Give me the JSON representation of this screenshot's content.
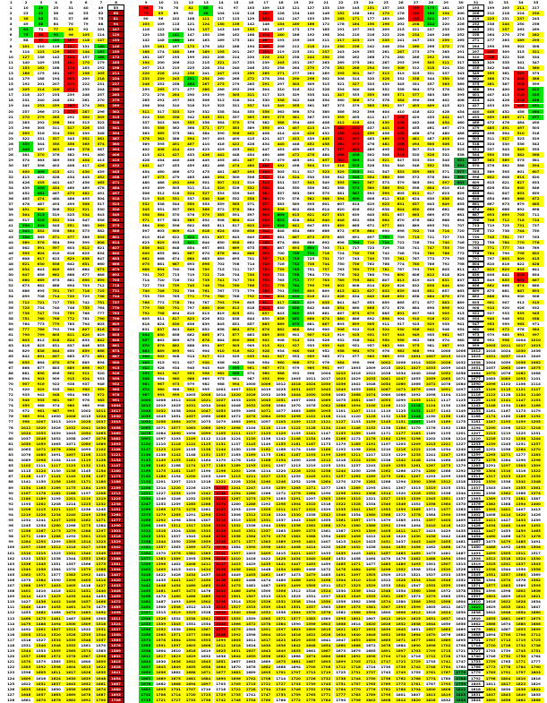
{
  "sheet": {
    "columns": [
      {
        "label": "1",
        "shift": 0,
        "mult": 1.0,
        "bold": false
      },
      {
        "label": "2",
        "shift": -3,
        "mult": 1.0,
        "bold": false
      },
      {
        "label": "3",
        "shift": 6,
        "mult": 1.0,
        "bold": false
      },
      {
        "label": "4",
        "shift": 12,
        "mult": 1.0,
        "bold": false
      },
      {
        "label": "5",
        "shift": 18,
        "mult": 1.0,
        "bold": false
      },
      {
        "label": "6",
        "shift": 27,
        "mult": 1.0,
        "bold": false
      },
      {
        "label": "7",
        "shift": 36,
        "mult": 1.0,
        "bold": false
      },
      {
        "label": "8",
        "shift": 42,
        "mult": 1.0,
        "bold": true
      },
      {
        "label": "",
        "shift": 0,
        "mult": 0,
        "bold": false,
        "spacer": true
      },
      {
        "label": "9",
        "shift": 51,
        "mult": 1.0,
        "bold": false
      },
      {
        "label": "10",
        "shift": 57,
        "mult": 1.0,
        "bold": false
      },
      {
        "label": "11",
        "shift": 63,
        "mult": 1.0,
        "bold": false
      },
      {
        "label": "12",
        "shift": 69,
        "mult": 1.0,
        "bold": false
      },
      {
        "label": "13",
        "shift": 72,
        "mult": 1.0,
        "bold": false
      },
      {
        "label": "14",
        "shift": 78,
        "mult": 1.0,
        "bold": false
      },
      {
        "label": "15",
        "shift": 84,
        "mult": 1.0,
        "bold": false
      },
      {
        "label": "16",
        "shift": 90,
        "mult": 1.0,
        "bold": false
      },
      {
        "label": "17",
        "shift": 96,
        "mult": 1.0,
        "bold": false
      },
      {
        "label": "18",
        "shift": 102,
        "mult": 1.0,
        "bold": false
      },
      {
        "label": "19",
        "shift": 108,
        "mult": 1.0,
        "bold": false
      },
      {
        "label": "20",
        "shift": 114,
        "mult": 1.0,
        "bold": false
      },
      {
        "label": "21",
        "shift": 120,
        "mult": 1.0,
        "bold": false
      },
      {
        "label": "22",
        "shift": 126,
        "mult": 1.0,
        "bold": false
      },
      {
        "label": "23",
        "shift": 132,
        "mult": 1.0,
        "bold": false
      },
      {
        "label": "24",
        "shift": 138,
        "mult": 1.0,
        "bold": false
      },
      {
        "label": "25",
        "shift": 144,
        "mult": 1.0,
        "bold": false
      },
      {
        "label": "26",
        "shift": 150,
        "mult": 1.0,
        "bold": false
      },
      {
        "label": "27",
        "shift": 156,
        "mult": 1.0,
        "bold": false
      },
      {
        "label": "28",
        "shift": 162,
        "mult": 1.0,
        "bold": false
      },
      {
        "label": "29",
        "shift": 168,
        "mult": 1.0,
        "bold": false
      },
      {
        "label": "30",
        "shift": 174,
        "mult": 1.0,
        "bold": false
      },
      {
        "label": "31",
        "shift": 180,
        "mult": 1.0,
        "bold": true
      },
      {
        "label": "32",
        "shift": 186,
        "mult": 1.0,
        "bold": false
      },
      {
        "label": "33",
        "shift": 192,
        "mult": 1.0,
        "bold": false
      },
      {
        "label": "34",
        "shift": 198,
        "mult": 1.0,
        "bold": false
      },
      {
        "label": "35",
        "shift": 204,
        "mult": 1.0,
        "bold": false
      }
    ],
    "colors": {
      "yellow": "#ffff00",
      "green": "#00e600",
      "red": "#ff0000",
      "darkred": "#b00000",
      "darkgreen": "#1aa33a",
      "white": "#ffffff"
    },
    "highlights": [
      {
        "col": 7,
        "from": 0,
        "to": 127,
        "color": "darkred"
      },
      {
        "col": 7,
        "from": 0,
        "to": 0,
        "color": "white"
      },
      {
        "col": 30,
        "from": 0,
        "to": 127,
        "color": "white"
      },
      {
        "col": 30,
        "from": 28,
        "to": 32,
        "color": "darkgreen"
      },
      {
        "col": 30,
        "from": 122,
        "to": 127,
        "color": "darkgreen"
      },
      {
        "col": 9,
        "from": 0,
        "to": 1,
        "color": "red"
      },
      {
        "col": 9,
        "from": 60,
        "to": 127,
        "color": "green"
      },
      {
        "col": 8,
        "from": 58,
        "to": 62,
        "color": "green"
      },
      {
        "col": 2,
        "from": 5,
        "to": 6,
        "color": "red"
      },
      {
        "col": 2,
        "from": 0,
        "to": 3,
        "color": "green"
      },
      {
        "col": 3,
        "from": 5,
        "to": 6,
        "color": "green"
      },
      {
        "col": 4,
        "from": 6,
        "to": 15,
        "color": "red"
      },
      {
        "col": 4,
        "from": 18,
        "to": 19,
        "color": "red"
      },
      {
        "col": 1,
        "from": 25,
        "to": 26,
        "color": "green"
      },
      {
        "col": 2,
        "from": 33,
        "to": 34,
        "color": "green"
      },
      {
        "col": 2,
        "from": 38,
        "to": 40,
        "color": "green"
      },
      {
        "col": 1,
        "from": 40,
        "to": 42,
        "color": "green"
      },
      {
        "col": 17,
        "from": 1,
        "to": 2,
        "color": "red"
      },
      {
        "col": 17,
        "from": 5,
        "to": 8,
        "color": "red"
      },
      {
        "col": 17,
        "from": 29,
        "to": 55,
        "color": "red"
      },
      {
        "col": 18,
        "from": 38,
        "to": 40,
        "color": "green"
      },
      {
        "col": 19,
        "from": 45,
        "to": 58,
        "color": "green"
      },
      {
        "col": 14,
        "from": 88,
        "to": 115,
        "color": "red"
      },
      {
        "col": 22,
        "from": 22,
        "to": 28,
        "color": "red"
      },
      {
        "col": 23,
        "from": 22,
        "to": 26,
        "color": "red"
      },
      {
        "col": 23,
        "from": 27,
        "to": 35,
        "color": "green"
      },
      {
        "col": 23,
        "from": 43,
        "to": 43,
        "color": "green"
      },
      {
        "col": 26,
        "from": 20,
        "to": 27,
        "color": "red"
      },
      {
        "col": 27,
        "from": 0,
        "to": 2,
        "color": "red"
      },
      {
        "col": 28,
        "from": 0,
        "to": 3,
        "color": "green"
      },
      {
        "col": 32,
        "from": 8,
        "to": 9,
        "color": "red"
      },
      {
        "col": 34,
        "from": 12,
        "to": 18,
        "color": "red"
      },
      {
        "col": 35,
        "from": 15,
        "to": 20,
        "color": "green"
      },
      {
        "col": 34,
        "from": 49,
        "to": 50,
        "color": "red"
      },
      {
        "col": 27,
        "from": 73,
        "to": 76,
        "color": "green"
      },
      {
        "col": 12,
        "from": 13,
        "to": 14,
        "color": "green"
      },
      {
        "col": 13,
        "from": 0,
        "to": 1,
        "color": "green"
      },
      {
        "col": 12,
        "from": 42,
        "to": 43,
        "color": "green"
      },
      {
        "col": 15,
        "from": 66,
        "to": 67,
        "color": "green"
      },
      {
        "col": 1,
        "from": 4,
        "to": 5,
        "color": "green"
      },
      {
        "col": 6,
        "from": 7,
        "to": 9,
        "color": "green"
      },
      {
        "col": 2,
        "from": 30,
        "to": 30,
        "color": "green"
      },
      {
        "col": 11,
        "from": 5,
        "to": 6,
        "color": "green"
      },
      {
        "col": 25,
        "from": 42,
        "to": 43,
        "color": "green"
      },
      {
        "col": 20,
        "from": 44,
        "to": 45,
        "color": "green"
      },
      {
        "col": 31,
        "from": 110,
        "to": 110,
        "color": "green"
      }
    ]
  }
}
